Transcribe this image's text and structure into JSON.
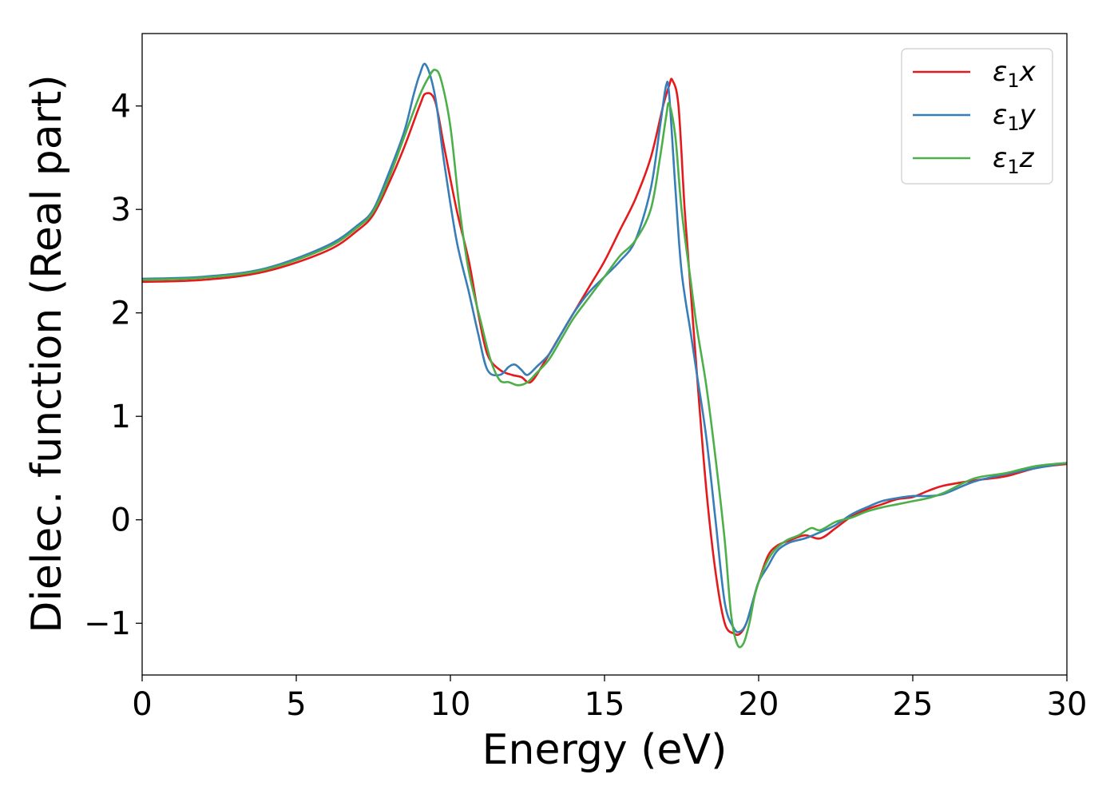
{
  "chart_data": {
    "type": "line",
    "xlabel": "Energy (eV)",
    "ylabel": "Dielec. function (Real part)",
    "xlim": [
      0,
      30
    ],
    "ylim": [
      -1.5,
      4.7
    ],
    "xticks": [
      0,
      5,
      10,
      15,
      20,
      25,
      30
    ],
    "xtick_labels": [
      "0",
      "5",
      "10",
      "15",
      "20",
      "25",
      "30"
    ],
    "yticks": [
      -1,
      0,
      1,
      2,
      3,
      4
    ],
    "ytick_labels": [
      "−1",
      "0",
      "1",
      "2",
      "3",
      "4"
    ],
    "grid": false,
    "legend_position": "top-right",
    "series": [
      {
        "name": "ε₁x",
        "legend_base": "ε",
        "legend_sub": "1",
        "legend_var": "x",
        "color": "#e41a1c",
        "x": [
          0,
          2,
          4,
          6,
          7,
          7.5,
          8,
          8.5,
          9.0,
          9.2,
          9.5,
          9.8,
          10.2,
          10.6,
          10.9,
          11.2,
          11.6,
          12.0,
          12.3,
          12.6,
          13.0,
          13.5,
          14.0,
          14.5,
          15.0,
          15.5,
          16.0,
          16.5,
          16.9,
          17.1,
          17.2,
          17.4,
          17.6,
          17.8,
          18.0,
          18.3,
          18.6,
          18.9,
          19.2,
          19.4,
          19.6,
          19.8,
          20.0,
          20.3,
          20.6,
          21.0,
          21.5,
          22.0,
          22.5,
          23.0,
          23.5,
          24.0,
          24.5,
          25.0,
          25.5,
          26.0,
          27.0,
          28.0,
          29.0,
          30.0
        ],
        "y": [
          2.3,
          2.32,
          2.4,
          2.6,
          2.8,
          2.95,
          3.25,
          3.6,
          4.0,
          4.12,
          4.05,
          3.6,
          3.0,
          2.5,
          2.0,
          1.6,
          1.45,
          1.4,
          1.38,
          1.33,
          1.5,
          1.75,
          2.0,
          2.25,
          2.5,
          2.8,
          3.1,
          3.5,
          4.0,
          4.2,
          4.25,
          4.0,
          3.0,
          2.2,
          1.4,
          0.3,
          -0.5,
          -1.0,
          -1.1,
          -1.1,
          -1.0,
          -0.8,
          -0.6,
          -0.35,
          -0.25,
          -0.2,
          -0.15,
          -0.18,
          -0.08,
          0.03,
          0.1,
          0.15,
          0.2,
          0.22,
          0.28,
          0.33,
          0.38,
          0.42,
          0.5,
          0.54
        ]
      },
      {
        "name": "ε₁y",
        "legend_base": "ε",
        "legend_sub": "1",
        "legend_var": "y",
        "color": "#377eb8",
        "x": [
          0,
          2,
          4,
          6,
          7,
          7.5,
          8,
          8.5,
          8.8,
          9.0,
          9.2,
          9.5,
          9.8,
          10.2,
          10.6,
          10.9,
          11.2,
          11.6,
          11.9,
          12.1,
          12.3,
          12.5,
          12.8,
          13.2,
          13.6,
          14.0,
          14.5,
          15.0,
          15.5,
          16.0,
          16.5,
          16.8,
          17.0,
          17.1,
          17.3,
          17.5,
          17.8,
          18.0,
          18.3,
          18.6,
          18.9,
          19.2,
          19.4,
          19.6,
          19.8,
          20.0,
          20.3,
          20.6,
          21.0,
          21.5,
          22.0,
          22.5,
          23.0,
          23.5,
          24.0,
          24.5,
          25.0,
          25.5,
          26.0,
          27.0,
          28.0,
          29.0,
          30.0
        ],
        "y": [
          2.33,
          2.35,
          2.43,
          2.65,
          2.85,
          3.0,
          3.35,
          3.75,
          4.1,
          4.3,
          4.4,
          4.1,
          3.45,
          2.7,
          2.2,
          1.8,
          1.45,
          1.4,
          1.48,
          1.5,
          1.45,
          1.4,
          1.48,
          1.6,
          1.8,
          2.0,
          2.2,
          2.35,
          2.5,
          2.7,
          3.2,
          3.8,
          4.2,
          4.1,
          3.2,
          2.4,
          1.8,
          1.4,
          0.8,
          0.0,
          -0.8,
          -1.05,
          -1.08,
          -1.0,
          -0.8,
          -0.6,
          -0.45,
          -0.3,
          -0.22,
          -0.18,
          -0.12,
          -0.05,
          0.05,
          0.12,
          0.18,
          0.21,
          0.23,
          0.23,
          0.25,
          0.37,
          0.44,
          0.5,
          0.55
        ]
      },
      {
        "name": "ε₁z",
        "legend_base": "ε",
        "legend_sub": "1",
        "legend_var": "z",
        "color": "#4daf4a",
        "x": [
          0,
          2,
          4,
          6,
          7,
          7.5,
          8,
          8.5,
          9.0,
          9.3,
          9.5,
          9.7,
          10.0,
          10.3,
          10.6,
          11.0,
          11.3,
          11.6,
          11.9,
          12.2,
          12.5,
          12.8,
          13.2,
          13.6,
          14.0,
          14.5,
          15.0,
          15.5,
          16.0,
          16.5,
          16.8,
          17.0,
          17.1,
          17.3,
          17.5,
          17.8,
          18.0,
          18.3,
          18.6,
          18.9,
          19.1,
          19.3,
          19.5,
          19.7,
          19.9,
          20.2,
          20.5,
          20.9,
          21.3,
          21.7,
          22.0,
          22.5,
          23.0,
          23.5,
          24.0,
          24.5,
          25.0,
          25.5,
          26.0,
          27.0,
          28.0,
          29.0,
          30.0
        ],
        "y": [
          2.32,
          2.34,
          2.42,
          2.63,
          2.83,
          2.98,
          3.3,
          3.7,
          4.1,
          4.28,
          4.35,
          4.25,
          3.8,
          3.0,
          2.4,
          1.9,
          1.55,
          1.35,
          1.33,
          1.3,
          1.33,
          1.42,
          1.55,
          1.75,
          1.95,
          2.15,
          2.35,
          2.55,
          2.7,
          3.0,
          3.5,
          3.9,
          4.02,
          3.7,
          3.0,
          2.3,
          1.85,
          1.3,
          0.6,
          -0.2,
          -0.9,
          -1.2,
          -1.2,
          -1.0,
          -0.7,
          -0.45,
          -0.3,
          -0.2,
          -0.15,
          -0.08,
          -0.1,
          -0.02,
          0.02,
          0.08,
          0.12,
          0.15,
          0.18,
          0.21,
          0.26,
          0.4,
          0.45,
          0.52,
          0.55
        ]
      }
    ]
  }
}
